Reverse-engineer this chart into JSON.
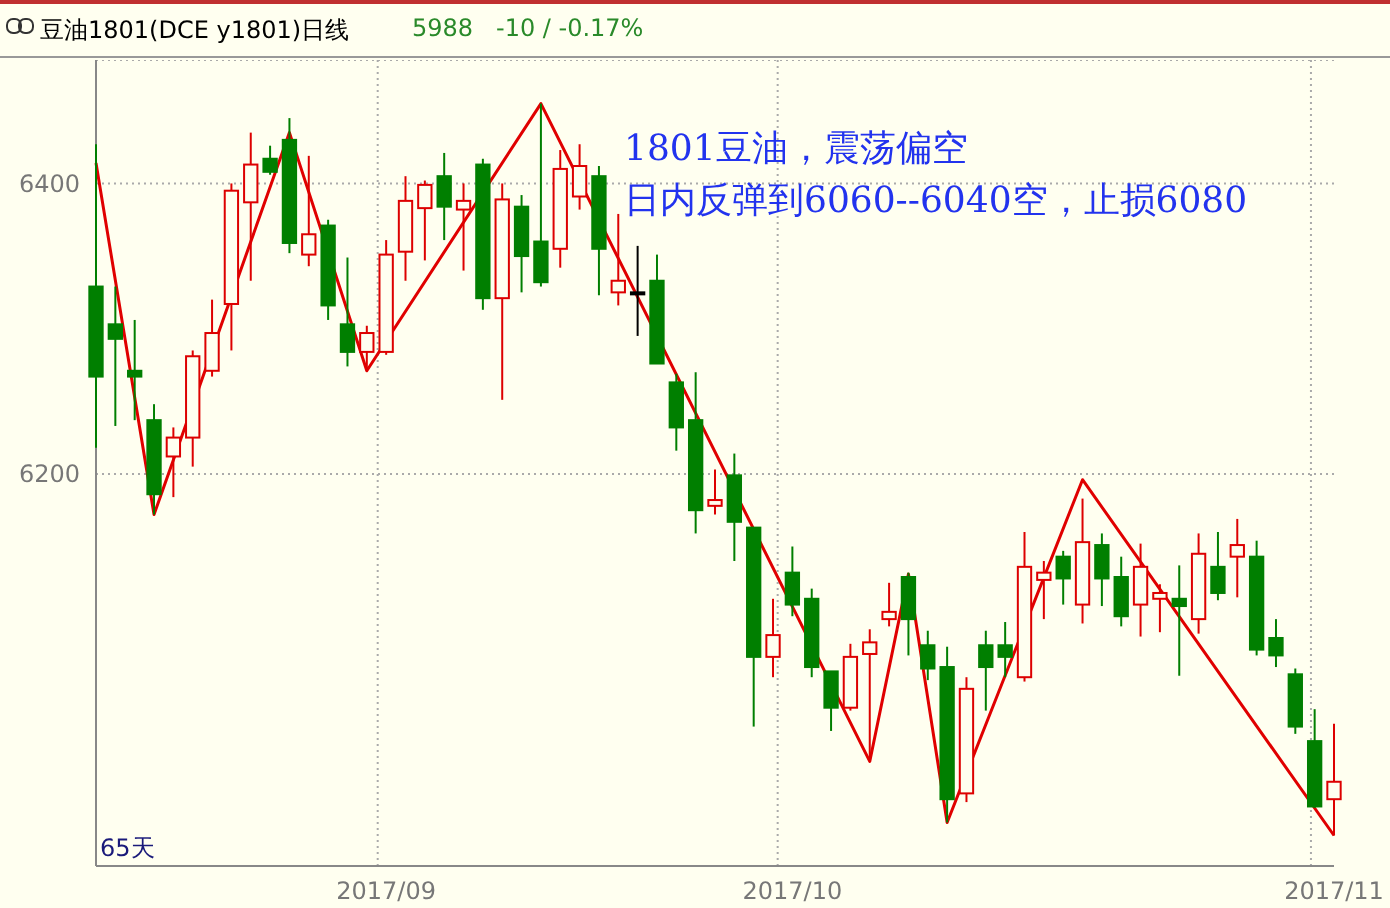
{
  "chart_data": {
    "type": "candlestick",
    "title": "豆油1801(DCE y1801)日线",
    "subtitle": "5988   -10 / -0.17%",
    "categories": [
      null,
      null,
      null,
      null,
      null,
      null,
      null,
      null,
      null,
      null,
      null,
      null,
      null,
      null,
      null,
      "2017/09",
      null,
      null,
      null,
      null,
      null,
      null,
      null,
      null,
      null,
      null,
      null,
      null,
      null,
      null,
      null,
      null,
      null,
      null,
      null,
      null,
      "2017/10",
      null,
      null,
      null,
      null,
      null,
      null,
      null,
      null,
      null,
      null,
      null,
      null,
      null,
      null,
      null,
      null,
      null,
      null,
      null,
      null,
      null,
      null,
      null,
      null,
      null,
      null,
      null,
      "2017/11"
    ],
    "ohlc": [
      [
        6329,
        6427,
        6218,
        6267
      ],
      [
        6303,
        6329,
        6233,
        6293
      ],
      [
        6271,
        6306,
        6237,
        6267
      ],
      [
        6237,
        6248,
        6172,
        6186
      ],
      [
        6212,
        6232,
        6184,
        6225
      ],
      [
        6225,
        6285,
        6205,
        6281
      ],
      [
        6271,
        6320,
        6267,
        6297
      ],
      [
        6317,
        6400,
        6285,
        6395
      ],
      [
        6387,
        6435,
        6333,
        6413
      ],
      [
        6417,
        6426,
        6406,
        6408
      ],
      [
        6430,
        6445,
        6352,
        6359
      ],
      [
        6351,
        6419,
        6343,
        6365
      ],
      [
        6371,
        6375,
        6306,
        6316
      ],
      [
        6303,
        6349,
        6274,
        6284
      ],
      [
        6284,
        6302,
        6271,
        6297
      ],
      [
        6284,
        6361,
        6282,
        6351
      ],
      [
        6353,
        6405,
        6333,
        6388
      ],
      [
        6383,
        6402,
        6347,
        6399
      ],
      [
        6405,
        6421,
        6361,
        6384
      ],
      [
        6382,
        6400,
        6340,
        6388
      ],
      [
        6413,
        6417,
        6313,
        6321
      ],
      [
        6321,
        6400,
        6251,
        6389
      ],
      [
        6384,
        6392,
        6325,
        6350
      ],
      [
        6360,
        6455,
        6329,
        6332
      ],
      [
        6355,
        6423,
        6342,
        6410
      ],
      [
        6391,
        6427,
        6382,
        6412
      ],
      [
        6405,
        6412,
        6323,
        6355
      ],
      [
        6325,
        6379,
        6316,
        6333
      ],
      [
        6325,
        6357,
        6295,
        6325
      ],
      [
        6333,
        6351,
        6276,
        6276
      ],
      [
        6263,
        6269,
        6216,
        6232
      ],
      [
        6237,
        6270,
        6159,
        6175
      ],
      [
        6178,
        6203,
        6172,
        6182
      ],
      [
        6199,
        6214,
        6140,
        6167
      ],
      [
        6163,
        6163,
        6026,
        6074
      ],
      [
        6074,
        6114,
        6060,
        6089
      ],
      [
        6132,
        6150,
        6102,
        6110
      ],
      [
        6114,
        6121,
        6060,
        6067
      ],
      [
        6064,
        6064,
        6023,
        6039
      ],
      [
        6039,
        6083,
        6037,
        6074
      ],
      [
        6076,
        6093,
        6002,
        6084
      ],
      [
        6100,
        6125,
        6095,
        6105
      ],
      [
        6129,
        6132,
        6075,
        6100
      ],
      [
        6082,
        6092,
        6058,
        6066
      ],
      [
        6067,
        6081,
        5960,
        5976
      ],
      [
        5980,
        6060,
        5974,
        6052
      ],
      [
        6082,
        6092,
        6037,
        6067
      ],
      [
        6082,
        6098,
        6060,
        6074
      ],
      [
        6060,
        6160,
        6057,
        6136
      ],
      [
        6127,
        6140,
        6100,
        6132
      ],
      [
        6143,
        6147,
        6110,
        6128
      ],
      [
        6110,
        6183,
        6097,
        6153
      ],
      [
        6151,
        6159,
        6109,
        6128
      ],
      [
        6129,
        6143,
        6095,
        6102
      ],
      [
        6110,
        6152,
        6088,
        6136
      ],
      [
        6114,
        6124,
        6091,
        6118
      ],
      [
        6114,
        6137,
        6061,
        6109
      ],
      [
        6100,
        6159,
        6090,
        6145
      ],
      [
        6136,
        6160,
        6113,
        6118
      ],
      [
        6143,
        6169,
        6115,
        6151
      ],
      [
        6143,
        6154,
        6075,
        6079
      ],
      [
        6087,
        6100,
        6067,
        6075
      ],
      [
        6062,
        6066,
        6021,
        6026
      ],
      [
        6016,
        6038,
        5970,
        5971
      ],
      [
        5976,
        6028,
        5951,
        5988
      ]
    ],
    "colors": [
      "#007f00",
      "#007f00",
      "#007f00",
      "#007f00",
      "#dd0000",
      "#dd0000",
      "#dd0000",
      "#dd0000",
      "#dd0000",
      "#007f00",
      "#007f00",
      "#dd0000",
      "#007f00",
      "#007f00",
      "#dd0000",
      "#dd0000",
      "#dd0000",
      "#dd0000",
      "#007f00",
      "#dd0000",
      "#007f00",
      "#dd0000",
      "#007f00",
      "#007f00",
      "#dd0000",
      "#dd0000",
      "#007f00",
      "#dd0000",
      "#000000",
      "#007f00",
      "#007f00",
      "#007f00",
      "#dd0000",
      "#007f00",
      "#007f00",
      "#dd0000",
      "#007f00",
      "#007f00",
      "#007f00",
      "#dd0000",
      "#dd0000",
      "#dd0000",
      "#007f00",
      "#007f00",
      "#007f00",
      "#dd0000",
      "#007f00",
      "#007f00",
      "#dd0000",
      "#dd0000",
      "#007f00",
      "#dd0000",
      "#007f00",
      "#007f00",
      "#dd0000",
      "#dd0000",
      "#007f00",
      "#dd0000",
      "#007f00",
      "#dd0000",
      "#007f00",
      "#007f00",
      "#007f00",
      "#007f00",
      "#dd0000"
    ],
    "series": [
      {
        "type": "line",
        "color": "#e00000",
        "values": [
          6414,
          null,
          null,
          6172,
          null,
          null,
          null,
          null,
          null,
          null,
          6435,
          null,
          null,
          null,
          6271,
          null,
          null,
          null,
          null,
          null,
          null,
          null,
          null,
          6455,
          null,
          null,
          null,
          null,
          null,
          null,
          null,
          null,
          null,
          null,
          null,
          null,
          null,
          null,
          null,
          null,
          6002,
          null,
          6131,
          null,
          5960,
          null,
          null,
          null,
          null,
          null,
          null,
          6196,
          null,
          null,
          null,
          null,
          null,
          null,
          null,
          null,
          null,
          null,
          null,
          null,
          5951
        ]
      }
    ],
    "ylim": [
      5930,
      6485
    ],
    "yticks": [
      6200,
      6400
    ],
    "grid": true,
    "annotations": [
      "1801豆油，震荡偏空",
      "日内反弹到6060--6040空，止损6080",
      "65天"
    ]
  }
}
